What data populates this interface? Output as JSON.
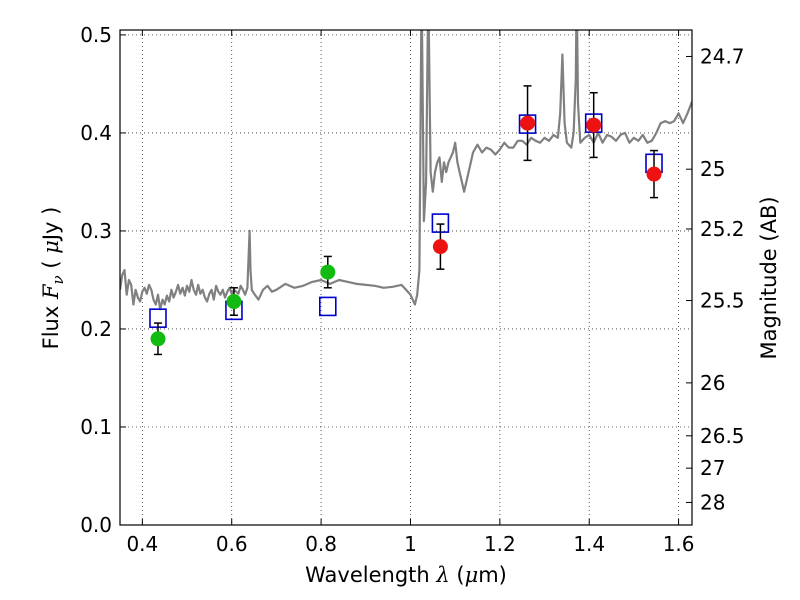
{
  "chart_data": {
    "type": "scatter",
    "title": "",
    "xlabel": {
      "pre": "Wavelength ",
      "sym": "λ",
      "post": " (",
      "mu": "μ",
      "unit": "m)"
    },
    "ylabel": {
      "pre": "Flux ",
      "sym": "F",
      "sub": "ν",
      "mid": " ( ",
      "mu": "μ",
      "unit": "Jy )"
    },
    "y2label": "Magnitude (AB)",
    "xlim": [
      0.35,
      1.63
    ],
    "ylim": [
      0.0,
      0.505
    ],
    "grid": true,
    "xticks": [
      0.4,
      0.6,
      0.8,
      1.0,
      1.2,
      1.4,
      1.6
    ],
    "xtick_labels": [
      "0.4",
      "0.6",
      "0.8",
      "1",
      "1.2",
      "1.4",
      "1.6"
    ],
    "yticks": [
      0.0,
      0.1,
      0.2,
      0.3,
      0.4,
      0.5
    ],
    "ytick_labels": [
      "0.0",
      "0.1",
      "0.2",
      "0.3",
      "0.4",
      "0.5"
    ],
    "y2_ticks": [
      {
        "label": "24.7",
        "flux": 0.478
      },
      {
        "label": "25",
        "flux": 0.363
      },
      {
        "label": "25.2",
        "flux": 0.302
      },
      {
        "label": "25.5",
        "flux": 0.229
      },
      {
        "label": "26",
        "flux": 0.145
      },
      {
        "label": "26.5",
        "flux": 0.091
      },
      {
        "label": "27",
        "flux": 0.058
      },
      {
        "label": "28",
        "flux": 0.023
      }
    ],
    "colors": {
      "spectrum": "#808080",
      "model": "#0000cc",
      "optical": "#11bb11",
      "nir": "#ee1111",
      "grid": "#333333",
      "errorbar": "#000000"
    },
    "series": [
      {
        "marker": "line",
        "x": [
          0.35,
          0.355,
          0.36,
          0.365,
          0.37,
          0.375,
          0.38,
          0.385,
          0.39,
          0.395,
          0.4,
          0.405,
          0.41,
          0.415,
          0.42,
          0.425,
          0.43,
          0.435,
          0.44,
          0.445,
          0.45,
          0.455,
          0.46,
          0.465,
          0.47,
          0.475,
          0.48,
          0.485,
          0.49,
          0.495,
          0.5,
          0.505,
          0.51,
          0.515,
          0.52,
          0.525,
          0.53,
          0.535,
          0.54,
          0.545,
          0.55,
          0.555,
          0.56,
          0.565,
          0.57,
          0.575,
          0.58,
          0.585,
          0.59,
          0.595,
          0.6,
          0.605,
          0.61,
          0.615,
          0.62,
          0.625,
          0.63,
          0.635,
          0.64,
          0.642,
          0.645,
          0.65,
          0.66,
          0.67,
          0.68,
          0.69,
          0.7,
          0.72,
          0.74,
          0.76,
          0.78,
          0.8,
          0.82,
          0.84,
          0.86,
          0.88,
          0.9,
          0.92,
          0.94,
          0.96,
          0.98,
          0.99,
          1.0,
          1.005,
          1.01,
          1.015,
          1.02,
          1.025,
          1.03,
          1.035,
          1.04,
          1.045,
          1.05,
          1.055,
          1.06,
          1.065,
          1.07,
          1.075,
          1.08,
          1.085,
          1.09,
          1.095,
          1.1,
          1.105,
          1.11,
          1.115,
          1.12,
          1.13,
          1.14,
          1.15,
          1.16,
          1.17,
          1.18,
          1.19,
          1.2,
          1.21,
          1.22,
          1.23,
          1.24,
          1.25,
          1.26,
          1.27,
          1.28,
          1.29,
          1.3,
          1.31,
          1.32,
          1.33,
          1.335,
          1.34,
          1.345,
          1.35,
          1.36,
          1.365,
          1.37,
          1.372,
          1.375,
          1.38,
          1.39,
          1.4,
          1.41,
          1.42,
          1.43,
          1.44,
          1.45,
          1.46,
          1.47,
          1.48,
          1.49,
          1.5,
          1.51,
          1.52,
          1.53,
          1.54,
          1.55,
          1.56,
          1.57,
          1.58,
          1.59,
          1.6,
          1.61,
          1.62,
          1.63
        ],
        "y": [
          0.24,
          0.255,
          0.26,
          0.235,
          0.25,
          0.245,
          0.225,
          0.24,
          0.232,
          0.228,
          0.238,
          0.242,
          0.236,
          0.245,
          0.24,
          0.23,
          0.225,
          0.235,
          0.22,
          0.23,
          0.225,
          0.234,
          0.228,
          0.24,
          0.232,
          0.238,
          0.245,
          0.236,
          0.242,
          0.234,
          0.244,
          0.238,
          0.25,
          0.24,
          0.235,
          0.245,
          0.236,
          0.24,
          0.232,
          0.228,
          0.236,
          0.24,
          0.23,
          0.244,
          0.238,
          0.235,
          0.24,
          0.232,
          0.238,
          0.242,
          0.236,
          0.24,
          0.238,
          0.236,
          0.244,
          0.24,
          0.235,
          0.242,
          0.3,
          0.26,
          0.24,
          0.236,
          0.23,
          0.24,
          0.244,
          0.238,
          0.24,
          0.246,
          0.242,
          0.244,
          0.248,
          0.25,
          0.246,
          0.25,
          0.248,
          0.246,
          0.245,
          0.244,
          0.242,
          0.243,
          0.245,
          0.24,
          0.235,
          0.23,
          0.225,
          0.235,
          0.26,
          0.55,
          0.31,
          0.35,
          0.55,
          0.36,
          0.34,
          0.36,
          0.37,
          0.375,
          0.35,
          0.37,
          0.36,
          0.37,
          0.375,
          0.38,
          0.39,
          0.37,
          0.36,
          0.35,
          0.34,
          0.36,
          0.38,
          0.388,
          0.38,
          0.385,
          0.383,
          0.378,
          0.383,
          0.39,
          0.385,
          0.385,
          0.392,
          0.392,
          0.388,
          0.395,
          0.392,
          0.39,
          0.395,
          0.392,
          0.398,
          0.395,
          0.42,
          0.48,
          0.41,
          0.39,
          0.385,
          0.4,
          0.455,
          0.55,
          0.43,
          0.39,
          0.395,
          0.398,
          0.39,
          0.4,
          0.39,
          0.398,
          0.396,
          0.392,
          0.398,
          0.4,
          0.39,
          0.395,
          0.392,
          0.398,
          0.39,
          0.392,
          0.4,
          0.41,
          0.412,
          0.41,
          0.412,
          0.42,
          0.41,
          0.42,
          0.432
        ]
      },
      {
        "marker": "open-square",
        "x": [
          0.435,
          0.605,
          0.815,
          1.067,
          1.262,
          1.41,
          1.545
        ],
        "y": [
          0.211,
          0.219,
          0.223,
          0.308,
          0.409,
          0.41,
          0.369
        ]
      },
      {
        "marker": "filled-circle",
        "x": [
          0.435,
          0.605,
          0.815
        ],
        "y": [
          0.19,
          0.228,
          0.258
        ],
        "err": [
          0.016,
          0.014,
          0.016
        ]
      },
      {
        "marker": "filled-circle",
        "x": [
          1.067,
          1.262,
          1.41,
          1.545
        ],
        "y": [
          0.284,
          0.41,
          0.408,
          0.358
        ],
        "err": [
          0.023,
          0.038,
          0.033,
          0.024
        ]
      }
    ]
  }
}
